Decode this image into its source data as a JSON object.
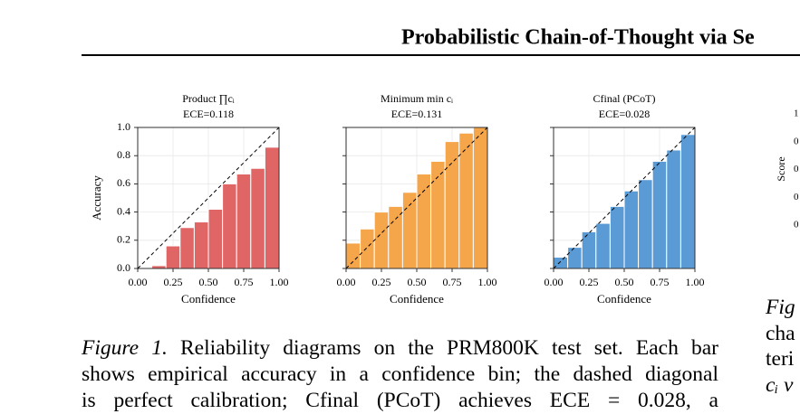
{
  "header": {
    "title": "Probabilistic Chain-of-Thought via Se"
  },
  "chart_data": [
    {
      "type": "histogram",
      "title": "Product ∏cᵢ",
      "subtitle": "ECE=0.118",
      "xlabel": "Confidence",
      "ylabel": "Accuracy",
      "bins": [
        0,
        0.1,
        0.2,
        0.3,
        0.4,
        0.5,
        0.6,
        0.7,
        0.8,
        0.9,
        1.0
      ],
      "values": [
        0,
        0.02,
        0.16,
        0.29,
        0.33,
        0.42,
        0.6,
        0.67,
        0.71,
        0.86
      ],
      "color": "#e06666",
      "xlim": [
        0,
        1
      ],
      "ylim": [
        0,
        1
      ],
      "xticks": [
        {
          "value": 0,
          "label": "0.00"
        },
        {
          "value": 0.25,
          "label": "0.25"
        },
        {
          "value": 0.5,
          "label": "0.50"
        },
        {
          "value": 0.75,
          "label": "0.75"
        },
        {
          "value": 1,
          "label": "1.00"
        }
      ],
      "yticks": [
        {
          "value": 0,
          "label": "0.0"
        },
        {
          "value": 0.2,
          "label": "0.2"
        },
        {
          "value": 0.4,
          "label": "0.4"
        },
        {
          "value": 0.6,
          "label": "0.6"
        },
        {
          "value": 0.8,
          "label": "0.8"
        },
        {
          "value": 1,
          "label": "1.0"
        }
      ],
      "show_ytick_labels": true,
      "grid": true,
      "diagonal": true
    },
    {
      "type": "histogram",
      "title": "Minimum min cᵢ",
      "subtitle": "ECE=0.131",
      "xlabel": "Confidence",
      "bins": [
        0,
        0.1,
        0.2,
        0.3,
        0.4,
        0.5,
        0.6,
        0.7,
        0.8,
        0.9,
        1.0
      ],
      "values": [
        0.18,
        0.28,
        0.4,
        0.44,
        0.54,
        0.67,
        0.76,
        0.9,
        0.96,
        1.0
      ],
      "color": "#f5a54a",
      "xlim": [
        0,
        1
      ],
      "ylim": [
        0,
        1
      ],
      "xticks": [
        {
          "value": 0,
          "label": "0.00"
        },
        {
          "value": 0.25,
          "label": "0.25"
        },
        {
          "value": 0.5,
          "label": "0.50"
        },
        {
          "value": 0.75,
          "label": "0.75"
        },
        {
          "value": 1,
          "label": "1.00"
        }
      ],
      "yticks": [
        0,
        0.2,
        0.4,
        0.6,
        0.8,
        1
      ],
      "show_ytick_labels": false,
      "grid": true,
      "diagonal": true
    },
    {
      "type": "histogram",
      "title": "Cfinal (PCoT)",
      "subtitle": "ECE=0.028",
      "xlabel": "Confidence",
      "bins": [
        0,
        0.1,
        0.2,
        0.3,
        0.4,
        0.5,
        0.6,
        0.7,
        0.8,
        0.9,
        1.0
      ],
      "values": [
        0.08,
        0.15,
        0.26,
        0.32,
        0.44,
        0.55,
        0.63,
        0.76,
        0.84,
        0.95
      ],
      "color": "#5b9bd5",
      "xlim": [
        0,
        1
      ],
      "ylim": [
        0,
        1
      ],
      "xticks": [
        {
          "value": 0,
          "label": "0.00"
        },
        {
          "value": 0.25,
          "label": "0.25"
        },
        {
          "value": 0.5,
          "label": "0.50"
        },
        {
          "value": 0.75,
          "label": "0.75"
        },
        {
          "value": 1,
          "label": "1.00"
        }
      ],
      "yticks": [
        0,
        0.2,
        0.4,
        0.6,
        0.8,
        1
      ],
      "show_ytick_labels": false,
      "grid": true,
      "diagonal": true
    }
  ],
  "caption": {
    "label": "Figure 1.",
    "lines": [
      " Reliability diagrams on the PRM800K test set. Each bar",
      "shows empirical accuracy in a confidence bin; the dashed diagonal",
      "is perfect calibration; Cfinal (PCoT) achieves ECE = 0.028, a"
    ]
  },
  "right_column": {
    "ytick_fragments": [
      "1",
      "0",
      "0",
      "0",
      "0"
    ],
    "ylabel": "Score",
    "caption_fragments": [
      "Fig",
      "cha",
      "teri",
      "cᵢ v"
    ]
  }
}
